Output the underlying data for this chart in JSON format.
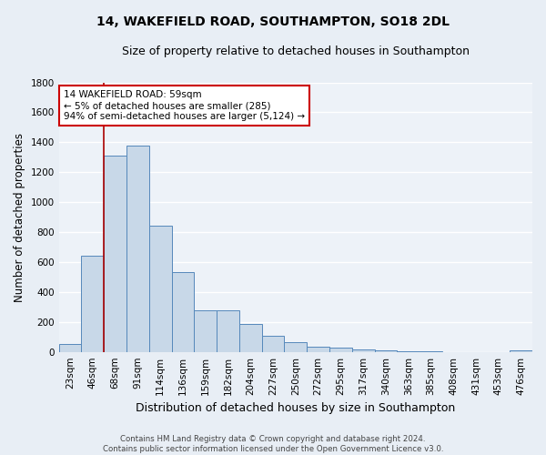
{
  "title1": "14, WAKEFIELD ROAD, SOUTHAMPTON, SO18 2DL",
  "title2": "Size of property relative to detached houses in Southampton",
  "xlabel": "Distribution of detached houses by size in Southampton",
  "ylabel": "Number of detached properties",
  "footnote": "Contains HM Land Registry data © Crown copyright and database right 2024.\nContains public sector information licensed under the Open Government Licence v3.0.",
  "bar_labels": [
    "23sqm",
    "46sqm",
    "68sqm",
    "91sqm",
    "114sqm",
    "136sqm",
    "159sqm",
    "182sqm",
    "204sqm",
    "227sqm",
    "250sqm",
    "272sqm",
    "295sqm",
    "317sqm",
    "340sqm",
    "363sqm",
    "385sqm",
    "408sqm",
    "431sqm",
    "453sqm",
    "476sqm"
  ],
  "bar_values": [
    55,
    645,
    1310,
    1375,
    845,
    530,
    275,
    275,
    185,
    105,
    65,
    35,
    30,
    15,
    10,
    5,
    5,
    0,
    0,
    0,
    10
  ],
  "bar_color": "#c8d8e8",
  "bar_edge_color": "#5588bb",
  "ylim": [
    0,
    1800
  ],
  "yticks": [
    0,
    200,
    400,
    600,
    800,
    1000,
    1200,
    1400,
    1600,
    1800
  ],
  "vline_x": 1.5,
  "vline_color": "#aa0000",
  "annotation_text": "14 WAKEFIELD ROAD: 59sqm\n← 5% of detached houses are smaller (285)\n94% of semi-detached houses are larger (5,124) →",
  "annotation_box_color": "#ffffff",
  "annotation_box_edge": "#cc0000",
  "bg_color": "#e8eef5",
  "plot_bg_color": "#edf2f8",
  "grid_color": "#ffffff",
  "title1_fontsize": 10,
  "title2_fontsize": 9,
  "ylabel_fontsize": 8.5,
  "xlabel_fontsize": 9,
  "tick_fontsize": 7.5,
  "annot_fontsize": 7.5
}
